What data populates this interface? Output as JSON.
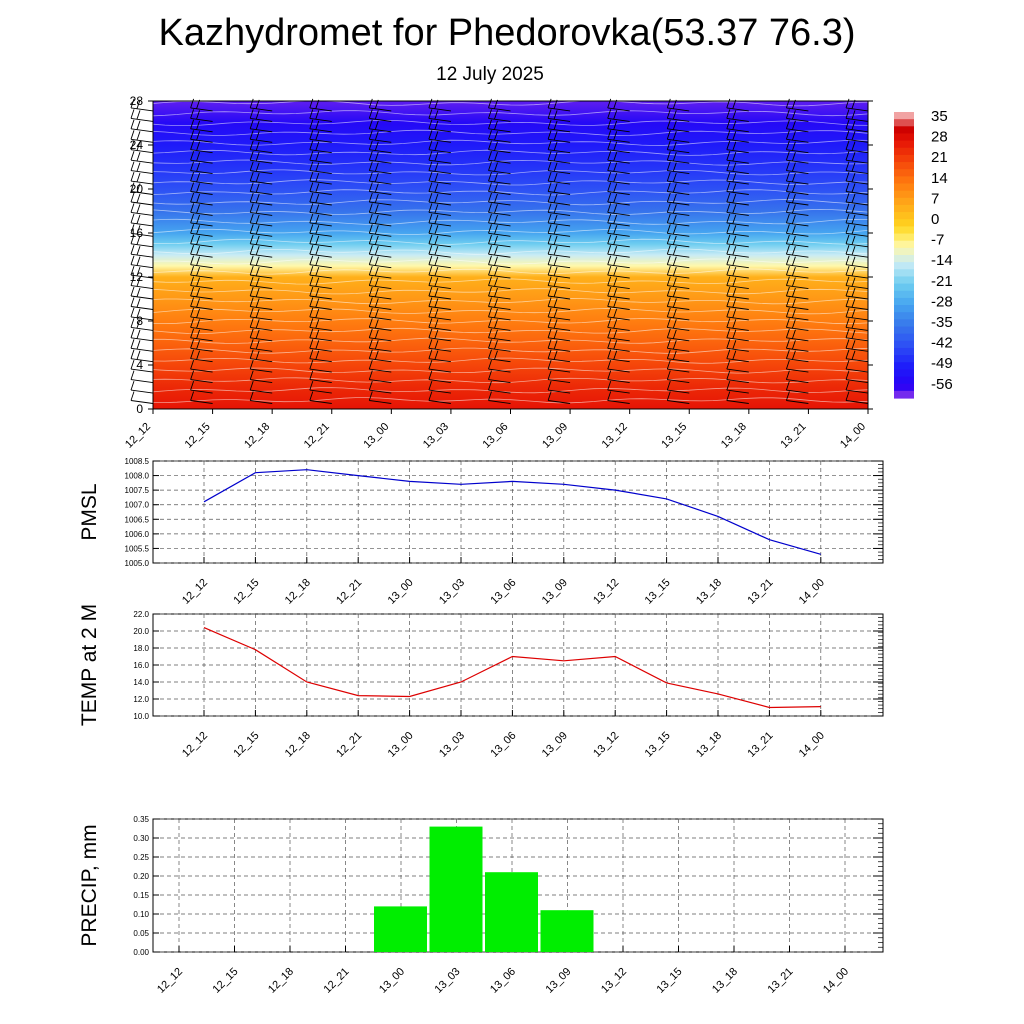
{
  "header": {
    "title": "Kazhydromet for Phedorovka(53.37 76.3)",
    "subtitle": "12 July 2025"
  },
  "colors": {
    "pmsl_line": "#0000cc",
    "temp_line": "#dd0000",
    "precip_bar": "#00ee00",
    "contour_line": "#ffffff",
    "wind_barb": "#000000"
  },
  "chart_data": [
    {
      "type": "heatmap",
      "title": "",
      "xlabel": "",
      "ylabel": "",
      "x": [
        "12_12",
        "12_15",
        "12_18",
        "12_21",
        "13_00",
        "13_03",
        "13_06",
        "13_09",
        "13_12",
        "13_15",
        "13_18",
        "13_21",
        "14_00"
      ],
      "y_ticks": [
        0,
        4,
        8,
        12,
        16,
        20,
        24,
        28
      ],
      "ylim": [
        0,
        28
      ],
      "field_profile": {
        "levels": [
          0,
          2,
          4,
          6,
          8,
          10,
          12,
          13,
          14,
          15,
          16,
          18,
          20,
          22,
          24,
          26,
          28
        ],
        "values": [
          28,
          25,
          21,
          17,
          13,
          9,
          5,
          -8,
          -14,
          -21,
          -28,
          -36,
          -42,
          -46,
          -50,
          -54,
          -58
        ]
      },
      "colorbar": {
        "labels": [
          "35",
          "28",
          "21",
          "14",
          "7",
          "0",
          "-7",
          "-14",
          "-21",
          "-28",
          "-35",
          "-42",
          "-49",
          "-56"
        ],
        "range": [
          -60,
          38
        ]
      },
      "wind_barbs": "present at every time step and level",
      "grid": false
    },
    {
      "type": "line",
      "ylabel": "PMSL",
      "x": [
        "12_12",
        "12_15",
        "12_18",
        "12_21",
        "13_00",
        "13_03",
        "13_06",
        "13_09",
        "13_12",
        "13_15",
        "13_18",
        "13_21",
        "14_00"
      ],
      "series": [
        {
          "values": [
            1007.1,
            1008.1,
            1008.2,
            1008.0,
            1007.8,
            1007.7,
            1007.8,
            1007.7,
            1007.5,
            1007.2,
            1006.6,
            1005.8,
            1005.3
          ]
        }
      ],
      "ylim": [
        1005.0,
        1008.5
      ],
      "y_ticks": [
        "1005.0",
        "1005.5",
        "1006.0",
        "1006.5",
        "1007.0",
        "1007.5",
        "1008.0",
        "1008.5"
      ],
      "grid": true
    },
    {
      "type": "line",
      "ylabel": "TEMP at 2 M",
      "x": [
        "12_12",
        "12_15",
        "12_18",
        "12_21",
        "13_00",
        "13_03",
        "13_06",
        "13_09",
        "13_12",
        "13_15",
        "13_18",
        "13_21",
        "14_00"
      ],
      "series": [
        {
          "values": [
            20.4,
            17.8,
            14.0,
            12.4,
            12.3,
            14.0,
            17.0,
            16.5,
            17.0,
            13.9,
            12.6,
            11.0,
            11.1
          ]
        }
      ],
      "ylim": [
        10.0,
        22.0
      ],
      "y_ticks": [
        "10.0",
        "12.0",
        "14.0",
        "16.0",
        "18.0",
        "20.0",
        "22.0"
      ],
      "grid": true
    },
    {
      "type": "bar",
      "ylabel": "PRECIP, mm",
      "categories": [
        "12_12",
        "12_15",
        "12_18",
        "12_21",
        "13_00",
        "13_03",
        "13_06",
        "13_09",
        "13_12",
        "13_15",
        "13_18",
        "13_21",
        "14_00"
      ],
      "values": [
        0,
        0,
        0,
        0,
        0.12,
        0.33,
        0.21,
        0.11,
        0,
        0,
        0,
        0,
        0
      ],
      "ylim": [
        0,
        0.35
      ],
      "y_ticks": [
        "0.00",
        "0.05",
        "0.10",
        "0.15",
        "0.20",
        "0.25",
        "0.30",
        "0.35"
      ],
      "grid": true
    }
  ]
}
